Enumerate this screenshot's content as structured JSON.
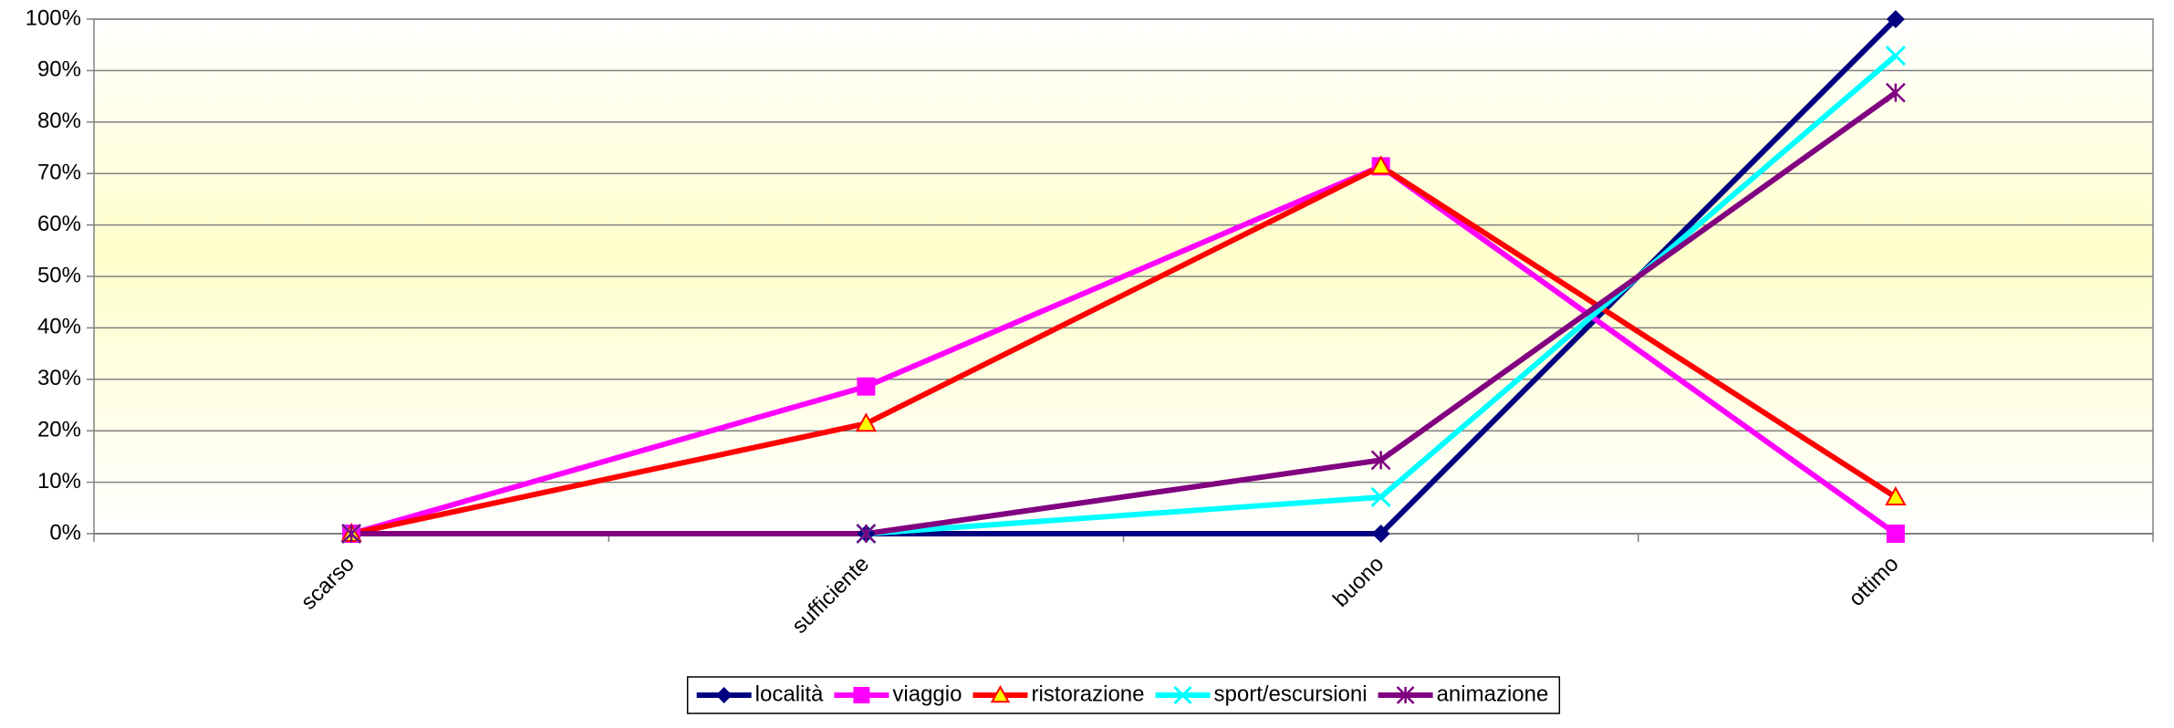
{
  "chart_data": {
    "type": "line",
    "categories": [
      "scarso",
      "sufficiente",
      "buono",
      "ottimo"
    ],
    "series": [
      {
        "name": "località",
        "color": "#000080",
        "marker": "diamond",
        "values": [
          0,
          0,
          0,
          100
        ]
      },
      {
        "name": "viaggio",
        "color": "#ff00ff",
        "marker": "square",
        "values": [
          0,
          28.6,
          71.4,
          0
        ]
      },
      {
        "name": "ristorazione",
        "color": "#ff0000",
        "marker": "triangle",
        "marker_fill": "#ffff00",
        "values": [
          0,
          21.4,
          71.4,
          7.1
        ]
      },
      {
        "name": "sport/escursioni",
        "color": "#00ffff",
        "marker": "x",
        "values": [
          0,
          0,
          7.1,
          92.9
        ]
      },
      {
        "name": "animazione",
        "color": "#800080",
        "marker": "asterisk",
        "values": [
          0,
          0,
          14.3,
          85.7
        ]
      }
    ],
    "ylim": [
      0,
      100
    ],
    "yticks": [
      {
        "value": 0,
        "label": "0%"
      },
      {
        "value": 10,
        "label": "10%"
      },
      {
        "value": 20,
        "label": "20%"
      },
      {
        "value": 30,
        "label": "30%"
      },
      {
        "value": 40,
        "label": "40%"
      },
      {
        "value": 50,
        "label": "50%"
      },
      {
        "value": 60,
        "label": "60%"
      },
      {
        "value": 70,
        "label": "70%"
      },
      {
        "value": 80,
        "label": "80%"
      },
      {
        "value": 90,
        "label": "90%"
      },
      {
        "value": 100,
        "label": "100%"
      }
    ],
    "grid": true,
    "legend": "bottom"
  }
}
